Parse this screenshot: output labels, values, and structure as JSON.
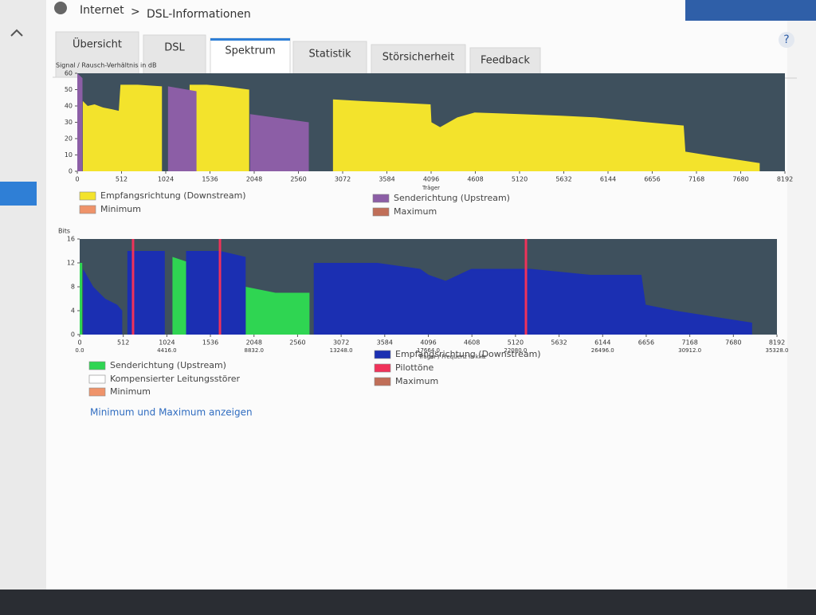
{
  "breadcrumb": {
    "section": "Internet",
    "page": "DSL-Informationen"
  },
  "tabs": [
    "Übersicht",
    "DSL",
    "Spektrum",
    "Statistik",
    "Störsicherheit",
    "Feedback"
  ],
  "help": "?",
  "link": "Minimum und Maximum anzeigen",
  "charts": [
    {
      "type": "area",
      "ylabel": "Signal / Rausch-Verhältnis in dB",
      "xlabel": "Träger",
      "xlim": [
        0,
        8192
      ],
      "ylim": [
        0,
        60
      ],
      "yticks": [
        0,
        10,
        20,
        30,
        40,
        50,
        60
      ],
      "xticks": [
        0,
        512,
        1024,
        1536,
        2048,
        2560,
        3072,
        3584,
        4096,
        4608,
        5120,
        5632,
        6144,
        6656,
        7168,
        7680,
        8192
      ],
      "series": [
        {
          "name": "Empfangsrichtung (Downstream)",
          "color": "#f3e32c",
          "x": [
            64,
            120,
            200,
            300,
            400,
            480,
            500,
            540,
            700,
            980,
            null,
            1300,
            1500,
            1700,
            1990,
            null,
            2960,
            3300,
            3700,
            4090,
            4100,
            4200,
            4400,
            4600,
            5120,
            5600,
            6000,
            6600,
            7020,
            7040,
            7400,
            7900
          ],
          "values": [
            43,
            40,
            41,
            39,
            38,
            37,
            53,
            53,
            53,
            52,
            null,
            53,
            53,
            52,
            50,
            null,
            44,
            43,
            42,
            41,
            30,
            27,
            33,
            36,
            35,
            34,
            33,
            30,
            28,
            12,
            9,
            5
          ]
        },
        {
          "name": "Senderichtung (Upstream)",
          "color": "#8c5ea6",
          "x": [
            0,
            60,
            null,
            1050,
            1380,
            null,
            2000,
            2680
          ],
          "values": [
            60,
            57,
            null,
            52,
            49,
            null,
            35,
            30
          ]
        },
        {
          "name": "Minimum",
          "color": "#ef936a",
          "x": [],
          "values": []
        },
        {
          "name": "Maximum",
          "color": "#c06e58",
          "x": [],
          "values": []
        }
      ]
    },
    {
      "type": "area",
      "ylabel": "Bits",
      "xlabel": "Träger / Frequenz in kHz",
      "xlim": [
        0,
        8192
      ],
      "ylim": [
        0,
        16
      ],
      "yticks": [
        0,
        4,
        8,
        12,
        16
      ],
      "xticks": [
        0,
        512,
        1024,
        1536,
        2048,
        2560,
        3072,
        3584,
        4096,
        4608,
        5120,
        5632,
        6144,
        6656,
        7168,
        7680,
        8192
      ],
      "freq_ticks": [
        {
          "value": 0,
          "label": "0.0"
        },
        {
          "value": 1024,
          "label": "4416.0"
        },
        {
          "value": 2048,
          "label": "8832.0"
        },
        {
          "value": 3072,
          "label": "13248.0"
        },
        {
          "value": 4096,
          "label": "17664.0"
        },
        {
          "value": 5120,
          "label": "22080.0"
        },
        {
          "value": 6144,
          "label": "26496.0"
        },
        {
          "value": 7168,
          "label": "30912.0"
        },
        {
          "value": 8192,
          "label": "35328.0"
        }
      ],
      "series": [
        {
          "name": "Senderichtung (Upstream)",
          "color": "#2fd552",
          "x": [
            0,
            30,
            null,
            1090,
            1300,
            null,
            1950,
            2300,
            2700
          ],
          "values": [
            12,
            12,
            null,
            13,
            12,
            null,
            8,
            7,
            7
          ]
        },
        {
          "name": "Empfangsrichtung (Downstream)",
          "color": "#1b2fb2",
          "x": [
            40,
            80,
            160,
            300,
            440,
            500,
            null,
            560,
            1000,
            null,
            1250,
            1650,
            1950,
            null,
            2750,
            3500,
            4000,
            4100,
            4300,
            4600,
            5000,
            5300,
            6000,
            6600,
            6650,
            7000,
            7900
          ],
          "values": [
            11,
            10,
            8,
            6,
            5,
            4,
            null,
            14,
            14,
            null,
            14,
            14,
            13,
            null,
            12,
            12,
            11,
            10,
            9,
            11,
            11,
            11,
            10,
            10,
            5,
            4,
            2
          ]
        },
        {
          "name": "Kompensierter Leitungsstörer",
          "color": "#ffffff",
          "x": [],
          "values": []
        },
        {
          "name": "Pilottöne",
          "color": "#f0325a",
          "x": [
            627,
            1648,
            5243
          ]
        },
        {
          "name": "Minimum",
          "color": "#ef936a",
          "x": [],
          "values": []
        },
        {
          "name": "Maximum",
          "color": "#c06e58",
          "x": [],
          "values": []
        }
      ]
    }
  ]
}
